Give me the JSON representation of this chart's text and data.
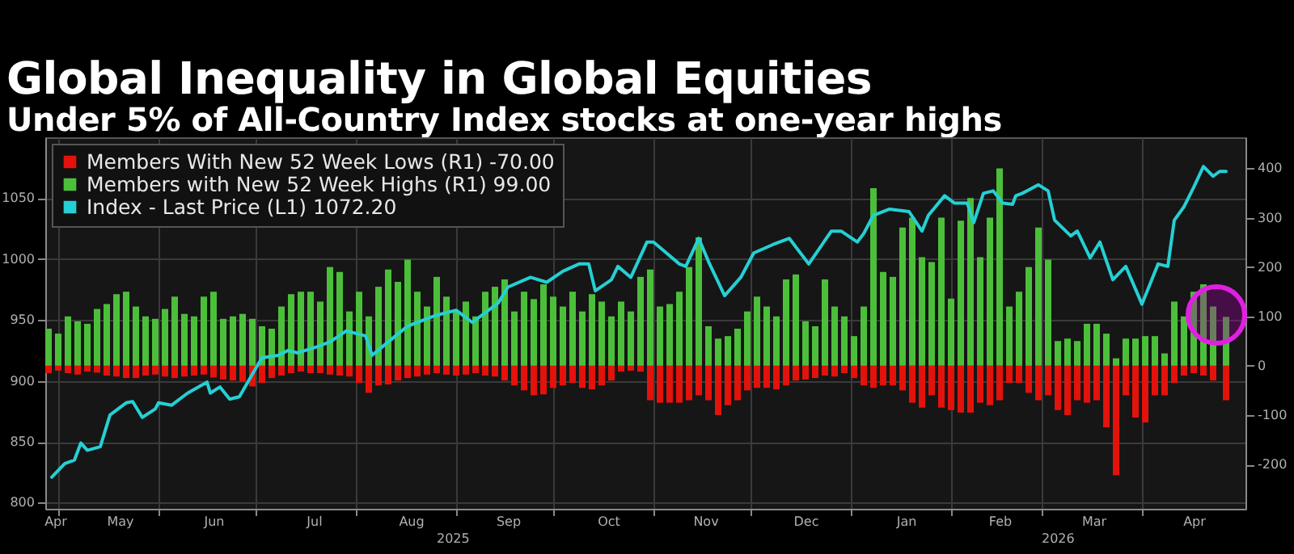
{
  "chart_data": {
    "type": "bar",
    "title": "Global Inequality in Global Equities",
    "subtitle": "Under 5% of All-Country Index stocks at one-year highs",
    "x": [
      "2025-04-28",
      "2025-05-01",
      "2025-05-04",
      "2025-05-07",
      "2025-05-10",
      "2025-05-13",
      "2025-05-16",
      "2025-05-19",
      "2025-05-22",
      "2025-05-25",
      "2025-05-28",
      "2025-05-31",
      "2025-06-03",
      "2025-06-06",
      "2025-06-09",
      "2025-06-12",
      "2025-06-15",
      "2025-06-18",
      "2025-06-21",
      "2025-06-24",
      "2025-06-27",
      "2025-06-30",
      "2025-07-03",
      "2025-07-06",
      "2025-07-09",
      "2025-07-12",
      "2025-07-15",
      "2025-07-18",
      "2025-07-21",
      "2025-07-24",
      "2025-07-27",
      "2025-07-30",
      "2025-08-02",
      "2025-08-05",
      "2025-08-08",
      "2025-08-11",
      "2025-08-14",
      "2025-08-17",
      "2025-08-20",
      "2025-08-23",
      "2025-08-26",
      "2025-08-29",
      "2025-09-01",
      "2025-09-04",
      "2025-09-07",
      "2025-09-10",
      "2025-09-13",
      "2025-09-16",
      "2025-09-19",
      "2025-09-22",
      "2025-09-25",
      "2025-09-28",
      "2025-10-01",
      "2025-10-04",
      "2025-10-07",
      "2025-10-10",
      "2025-10-13",
      "2025-10-16",
      "2025-10-19",
      "2025-10-22",
      "2025-10-25",
      "2025-10-28",
      "2025-10-31",
      "2025-11-03",
      "2025-11-06",
      "2025-11-09",
      "2025-11-12",
      "2025-11-15",
      "2025-11-18",
      "2025-11-21",
      "2025-11-24",
      "2025-11-27",
      "2025-11-30",
      "2025-12-03",
      "2025-12-06",
      "2025-12-09",
      "2025-12-12",
      "2025-12-15",
      "2025-12-18",
      "2025-12-21",
      "2025-12-24",
      "2025-12-27",
      "2025-12-30",
      "2026-01-02",
      "2026-01-05",
      "2026-01-08",
      "2026-01-11",
      "2026-01-14",
      "2026-01-17",
      "2026-01-20",
      "2026-01-23",
      "2026-01-26",
      "2026-01-29",
      "2026-02-01",
      "2026-02-04",
      "2026-02-07",
      "2026-02-10",
      "2026-02-13",
      "2026-02-16",
      "2026-02-19",
      "2026-02-22",
      "2026-02-25",
      "2026-02-28",
      "2026-03-03",
      "2026-03-06",
      "2026-03-09",
      "2026-03-12",
      "2026-03-15",
      "2026-03-18",
      "2026-03-21",
      "2026-03-24",
      "2026-03-27",
      "2026-03-30",
      "2026-04-02",
      "2026-04-05",
      "2026-04-08",
      "2026-04-11",
      "2026-04-14",
      "2026-04-17",
      "2026-04-20",
      "2026-04-23",
      "2026-04-27"
    ],
    "series": [
      {
        "name": "Members With New 52 Week Lows (R1) -70.00",
        "color": "#e3120b",
        "axis": "y2",
        "values": [
          -15,
          -10,
          -15,
          -18,
          -12,
          -14,
          -20,
          -22,
          -25,
          -25,
          -20,
          -18,
          -22,
          -25,
          -22,
          -20,
          -18,
          -24,
          -28,
          -30,
          -32,
          -42,
          -35,
          -25,
          -20,
          -15,
          -12,
          -15,
          -15,
          -18,
          -20,
          -22,
          -35,
          -55,
          -40,
          -38,
          -30,
          -25,
          -22,
          -18,
          -15,
          -18,
          -20,
          -18,
          -15,
          -20,
          -22,
          -30,
          -40,
          -50,
          -60,
          -58,
          -45,
          -40,
          -35,
          -45,
          -48,
          -40,
          -30,
          -12,
          -10,
          -12,
          -70,
          -75,
          -75,
          -75,
          -70,
          -60,
          -70,
          -100,
          -80,
          -70,
          -50,
          -45,
          -45,
          -48,
          -40,
          -30,
          -28,
          -25,
          -20,
          -22,
          -15,
          -25,
          -40,
          -45,
          -40,
          -40,
          -50,
          -75,
          -85,
          -60,
          -85,
          -90,
          -95,
          -95,
          -75,
          -80,
          -70,
          -35,
          -35,
          -55,
          -70,
          -60,
          -90,
          -100,
          -70,
          -75,
          -70,
          -125,
          -222,
          -60,
          -105,
          -115,
          -60,
          -60,
          -35,
          -20,
          -15,
          -20,
          -30,
          -70
        ]
      },
      {
        "name": "Members with New 52 Week Highs (R1) 99.00",
        "color": "#4cbf3a",
        "axis": "y2",
        "values": [
          75,
          65,
          100,
          90,
          85,
          115,
          125,
          145,
          150,
          120,
          100,
          95,
          115,
          140,
          105,
          100,
          140,
          150,
          95,
          100,
          105,
          95,
          80,
          75,
          120,
          145,
          150,
          150,
          130,
          200,
          190,
          110,
          150,
          100,
          160,
          195,
          170,
          215,
          150,
          120,
          180,
          140,
          110,
          130,
          100,
          150,
          160,
          175,
          110,
          150,
          135,
          165,
          140,
          120,
          150,
          110,
          145,
          130,
          100,
          130,
          110,
          180,
          195,
          120,
          125,
          150,
          200,
          260,
          80,
          55,
          60,
          75,
          110,
          140,
          120,
          100,
          175,
          185,
          90,
          80,
          175,
          120,
          100,
          60,
          120,
          360,
          190,
          180,
          280,
          300,
          220,
          210,
          300,
          136,
          294,
          340,
          220,
          300,
          400,
          120,
          150,
          200,
          280,
          215,
          50,
          55,
          50,
          85,
          85,
          65,
          15,
          55,
          55,
          60,
          60,
          25,
          130,
          100,
          150,
          165,
          120,
          99
        ]
      },
      {
        "name": "Index - Last Price (L1) 1072.20",
        "color": "#25d0d4",
        "type": "line",
        "x": [
          "2025-04-29",
          "2025-05-03",
          "2025-05-06",
          "2025-05-08",
          "2025-05-10",
          "2025-05-14",
          "2025-05-17",
          "2025-05-22",
          "2025-05-24",
          "2025-05-27",
          "2025-05-31",
          "2025-06-01",
          "2025-06-05",
          "2025-06-10",
          "2025-06-16",
          "2025-06-17",
          "2025-06-20",
          "2025-06-23",
          "2025-06-26",
          "2025-07-01",
          "2025-07-03",
          "2025-07-08",
          "2025-07-11",
          "2025-07-14",
          "2025-07-20",
          "2025-07-24",
          "2025-07-29",
          "2025-08-04",
          "2025-08-06",
          "2025-08-11",
          "2025-08-17",
          "2025-08-26",
          "2025-09-01",
          "2025-09-06",
          "2025-09-14",
          "2025-09-17",
          "2025-09-24",
          "2025-09-29",
          "2025-10-04",
          "2025-10-09",
          "2025-10-12",
          "2025-10-14",
          "2025-10-19",
          "2025-10-21",
          "2025-10-25",
          "2025-10-30",
          "2025-11-01",
          "2025-11-05",
          "2025-11-09",
          "2025-11-11",
          "2025-11-15",
          "2025-11-18",
          "2025-11-23",
          "2025-11-28",
          "2025-12-02",
          "2025-12-08",
          "2025-12-13",
          "2025-12-19",
          "2025-12-26",
          "2025-12-29",
          "2026-01-03",
          "2026-01-05",
          "2026-01-08",
          "2026-01-13",
          "2026-01-19",
          "2026-01-23",
          "2026-01-25",
          "2026-01-30",
          "2026-02-02",
          "2026-02-06",
          "2026-02-08",
          "2026-02-11",
          "2026-02-14",
          "2026-02-17",
          "2026-02-20",
          "2026-02-21",
          "2026-02-23",
          "2026-02-28",
          "2026-03-03",
          "2026-03-05",
          "2026-03-10",
          "2026-03-12",
          "2026-03-16",
          "2026-03-19",
          "2026-03-23",
          "2026-03-27",
          "2026-04-01",
          "2026-04-06",
          "2026-04-09",
          "2026-04-11",
          "2026-04-14",
          "2026-04-17",
          "2026-04-20",
          "2026-04-23",
          "2026-04-25",
          "2026-04-27"
        ],
        "values": [
          821,
          832,
          835,
          849,
          843,
          846,
          872,
          882,
          883,
          870,
          877,
          882,
          880,
          890,
          899,
          890,
          895,
          885,
          887,
          910,
          919,
          921,
          925,
          923,
          928,
          932,
          941,
          937,
          921,
          932,
          945,
          954,
          958,
          948,
          964,
          977,
          985,
          981,
          990,
          996,
          996,
          974,
          983,
          994,
          985,
          1014,
          1014,
          1005,
          996,
          994,
          1017,
          998,
          970,
          985,
          1005,
          1012,
          1017,
          996,
          1023,
          1023,
          1014,
          1021,
          1036,
          1041,
          1039,
          1023,
          1036,
          1052,
          1046,
          1046,
          1030,
          1054,
          1056,
          1046,
          1045,
          1052,
          1054,
          1061,
          1056,
          1032,
          1019,
          1023,
          1001,
          1014,
          983,
          994,
          963,
          996,
          994,
          1032,
          1043,
          1059,
          1076,
          1068,
          1072,
          1072
        ]
      }
    ],
    "xlim": [
      "2025-04-27",
      "2026-05-03"
    ],
    "xticks": [
      {
        "value": "2025-04-30",
        "label": "Apr"
      },
      {
        "value": "2025-05-01",
        "label": null
      },
      {
        "value": "2025-05-20",
        "label": "May"
      },
      {
        "value": "2025-06-01",
        "label": null
      },
      {
        "value": "2025-06-18",
        "label": "Jun"
      },
      {
        "value": "2025-07-01",
        "label": null
      },
      {
        "value": "2025-07-19",
        "label": "Jul"
      },
      {
        "value": "2025-08-01",
        "label": null
      },
      {
        "value": "2025-08-18",
        "label": "Aug"
      },
      {
        "value": "2025-09-01",
        "label": null
      },
      {
        "value": "2025-09-17",
        "label": "Sep"
      },
      {
        "value": "2025-10-01",
        "label": null
      },
      {
        "value": "2025-10-18",
        "label": "Oct"
      },
      {
        "value": "2025-11-01",
        "label": null
      },
      {
        "value": "2025-11-17",
        "label": "Nov"
      },
      {
        "value": "2025-12-01",
        "label": null
      },
      {
        "value": "2025-12-18",
        "label": "Dec"
      },
      {
        "value": "2026-01-01",
        "label": null
      },
      {
        "value": "2026-01-18",
        "label": "Jan"
      },
      {
        "value": "2026-02-01",
        "label": null
      },
      {
        "value": "2026-02-16",
        "label": "Feb"
      },
      {
        "value": "2026-03-01",
        "label": null
      },
      {
        "value": "2026-03-17",
        "label": "Mar"
      },
      {
        "value": "2026-04-01",
        "label": null
      },
      {
        "value": "2026-04-17",
        "label": "Apr"
      }
    ],
    "ylim": [
      795,
      1100
    ],
    "yticks": [
      800,
      850,
      900,
      950,
      1000,
      1050
    ],
    "y2lim": [
      -290,
      463
    ],
    "y2ticks": [
      -200,
      -100,
      0,
      100,
      200,
      300,
      400
    ],
    "annotations": [
      "2025",
      "2026"
    ],
    "grid": true,
    "legend": "top left",
    "stacked": true
  }
}
